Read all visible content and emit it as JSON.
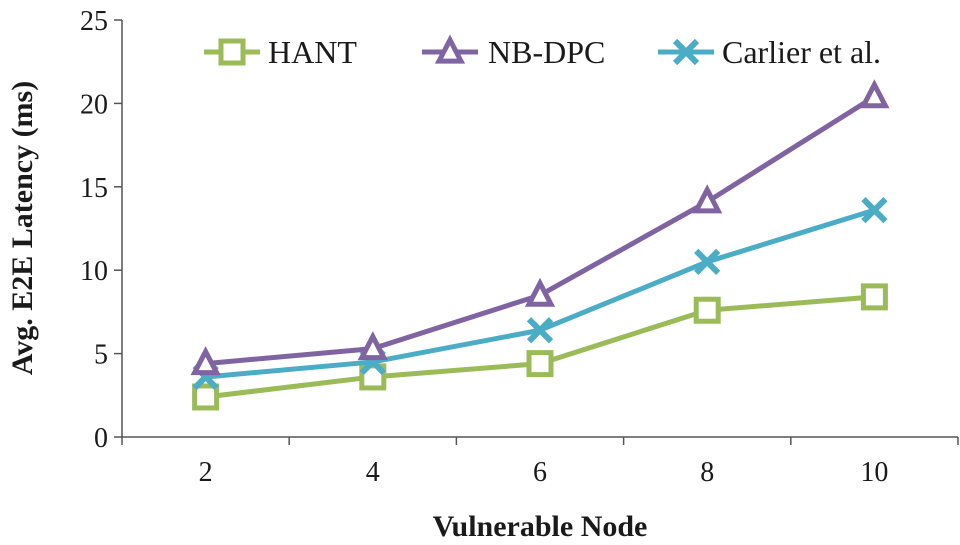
{
  "chart_data": {
    "type": "line",
    "title": "",
    "xlabel": "Vulnerable Node",
    "ylabel": "Avg. E2E Latency (ms)",
    "x": [
      2,
      4,
      6,
      8,
      10
    ],
    "x_tick_labels": [
      "2",
      "4",
      "6",
      "8",
      "10"
    ],
    "ylim": [
      0,
      25
    ],
    "y_tick_labels": [
      "0",
      "5",
      "10",
      "15",
      "20",
      "25"
    ],
    "y_ticks": [
      0,
      5,
      10,
      15,
      20,
      25
    ],
    "grid": false,
    "legend_position": "top",
    "series": [
      {
        "name": "HANT",
        "values": [
          2.4,
          3.6,
          4.4,
          7.6,
          8.4
        ],
        "color": "#9bbb59",
        "marker": "square"
      },
      {
        "name": "NB-DPC",
        "values": [
          4.4,
          5.3,
          8.5,
          14.1,
          20.4
        ],
        "color": "#8064a2",
        "marker": "triangle"
      },
      {
        "name": "Carlier et al.",
        "values": [
          3.6,
          4.5,
          6.4,
          10.5,
          13.6
        ],
        "color": "#4bacc6",
        "marker": "x"
      }
    ]
  }
}
